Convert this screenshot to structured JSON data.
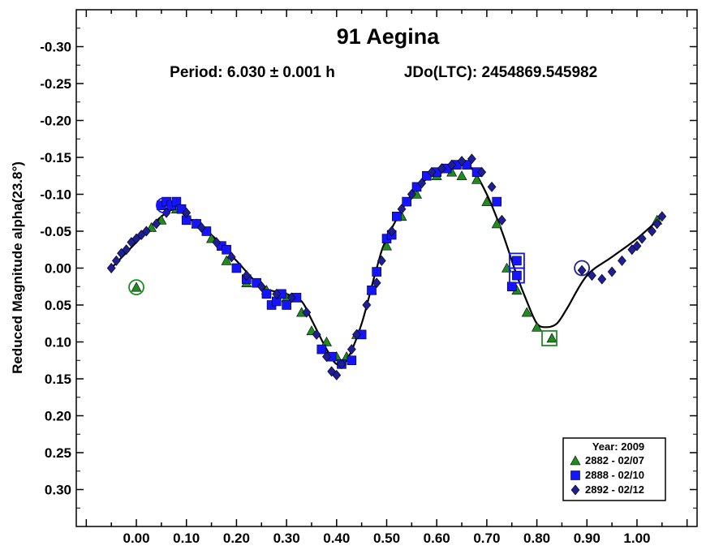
{
  "chart_data": {
    "type": "scatter",
    "title": "91 Aegina",
    "period_text": "Period: 6.030 ± 0.001 h",
    "epoch_text": "JDo(LTC): 2454869.545982",
    "xlabel": "",
    "ylabel": "Reduced Magnitude alpha(23.8°)",
    "xlim": [
      -0.12,
      1.12
    ],
    "ylim": [
      -0.35,
      0.35
    ],
    "y_inverted": true,
    "grid": false,
    "x_tick_values": [
      0.0,
      0.1,
      0.2,
      0.3,
      0.4,
      0.5,
      0.6,
      0.7,
      0.8,
      0.9,
      1.0
    ],
    "x_tick_labels": [
      "0.00",
      "0.10",
      "0.20",
      "0.30",
      "0.40",
      "0.50",
      "0.60",
      "0.70",
      "0.80",
      "0.90",
      "1.00"
    ],
    "y_tick_values": [
      -0.3,
      -0.25,
      -0.2,
      -0.15,
      -0.1,
      -0.05,
      0.0,
      0.05,
      0.1,
      0.15,
      0.2,
      0.25,
      0.3
    ],
    "y_tick_labels": [
      "-0.30",
      "-0.25",
      "-0.20",
      "-0.15",
      "-0.10",
      "-0.05",
      "0.00",
      "0.05",
      "0.10",
      "0.15",
      "0.20",
      "0.25",
      "0.30"
    ],
    "legend": {
      "position": "bottom-right",
      "title": "Year: 2009",
      "entries": [
        {
          "label": "2882 - 02/07",
          "marker": "triangle",
          "color": "#1e8c1e"
        },
        {
          "label": "2888 - 02/10",
          "marker": "square",
          "color": "#1414ff"
        },
        {
          "label": "2892 - 02/12",
          "marker": "diamond",
          "color": "#1e1e96"
        }
      ]
    },
    "fit_curve": {
      "color": "#000000",
      "x": [
        -0.05,
        0.0,
        0.05,
        0.08,
        0.1,
        0.15,
        0.2,
        0.25,
        0.3,
        0.33,
        0.35,
        0.38,
        0.4,
        0.42,
        0.45,
        0.48,
        0.5,
        0.55,
        0.6,
        0.65,
        0.67,
        0.7,
        0.73,
        0.76,
        0.78,
        0.8,
        0.82,
        0.84,
        0.86,
        0.9,
        0.95,
        1.0,
        1.05
      ],
      "y": [
        0.0,
        -0.035,
        -0.07,
        -0.08,
        -0.07,
        -0.045,
        -0.01,
        0.025,
        0.035,
        0.045,
        0.07,
        0.11,
        0.13,
        0.125,
        0.075,
        0.0,
        -0.04,
        -0.1,
        -0.13,
        -0.14,
        -0.135,
        -0.1,
        -0.05,
        0.01,
        0.045,
        0.075,
        0.08,
        0.075,
        0.055,
        0.01,
        -0.015,
        -0.04,
        -0.07
      ]
    },
    "series": [
      {
        "name": "2882 - 02/07",
        "marker": "triangle",
        "color": "#1e8c1e",
        "x": [
          0.0,
          0.03,
          0.05,
          0.08,
          0.12,
          0.15,
          0.18,
          0.22,
          0.26,
          0.3,
          0.33,
          0.35,
          0.38,
          0.4,
          0.42,
          0.44,
          0.47,
          0.5,
          0.53,
          0.56,
          0.6,
          0.63,
          0.65,
          0.68,
          0.7,
          0.72,
          0.74,
          0.76,
          0.78,
          0.8,
          0.83,
          1.04
        ],
        "y": [
          0.026,
          -0.055,
          -0.065,
          -0.08,
          -0.06,
          -0.04,
          -0.01,
          0.02,
          0.03,
          0.04,
          0.06,
          0.085,
          0.1,
          0.12,
          0.12,
          0.09,
          0.03,
          -0.03,
          -0.07,
          -0.1,
          -0.125,
          -0.13,
          -0.125,
          -0.12,
          -0.09,
          -0.06,
          0.0,
          0.03,
          0.06,
          0.08,
          0.095,
          -0.065
        ]
      },
      {
        "name": "2888 - 02/10",
        "marker": "square",
        "color": "#1414ff",
        "x": [
          0.05,
          0.06,
          0.07,
          0.08,
          0.09,
          0.1,
          0.12,
          0.14,
          0.17,
          0.18,
          0.2,
          0.22,
          0.24,
          0.26,
          0.27,
          0.28,
          0.29,
          0.3,
          0.32,
          0.37,
          0.39,
          0.41,
          0.43,
          0.45,
          0.47,
          0.48,
          0.5,
          0.51,
          0.52,
          0.54,
          0.56,
          0.58,
          0.6,
          0.62,
          0.64,
          0.66,
          0.68,
          0.72,
          0.75,
          0.76,
          0.76
        ],
        "y": [
          -0.085,
          -0.09,
          -0.085,
          -0.09,
          -0.08,
          -0.065,
          -0.06,
          -0.05,
          -0.03,
          -0.025,
          0.0,
          0.015,
          0.02,
          0.035,
          0.05,
          0.045,
          0.035,
          0.05,
          0.04,
          0.11,
          0.12,
          0.13,
          0.125,
          0.09,
          0.03,
          0.005,
          -0.04,
          -0.045,
          -0.07,
          -0.09,
          -0.11,
          -0.125,
          -0.13,
          -0.135,
          -0.14,
          -0.14,
          -0.13,
          -0.09,
          0.025,
          0.01,
          -0.01
        ]
      },
      {
        "name": "2892 - 02/12",
        "marker": "diamond",
        "color": "#1e1e96",
        "x": [
          -0.05,
          -0.04,
          -0.03,
          -0.02,
          -0.01,
          0.0,
          0.01,
          0.02,
          0.04,
          0.06,
          0.1,
          0.13,
          0.16,
          0.19,
          0.22,
          0.25,
          0.28,
          0.31,
          0.34,
          0.36,
          0.38,
          0.39,
          0.4,
          0.41,
          0.43,
          0.44,
          0.46,
          0.48,
          0.49,
          0.51,
          0.53,
          0.55,
          0.57,
          0.59,
          0.61,
          0.63,
          0.65,
          0.67,
          0.69,
          0.71,
          0.73,
          0.89,
          0.91,
          0.93,
          0.95,
          0.97,
          0.99,
          1.0,
          1.01,
          1.03,
          1.04,
          1.05
        ],
        "y": [
          0.0,
          -0.01,
          -0.02,
          -0.025,
          -0.035,
          -0.04,
          -0.045,
          -0.05,
          -0.06,
          -0.075,
          -0.075,
          -0.055,
          -0.035,
          -0.015,
          0.01,
          0.025,
          0.035,
          0.04,
          0.06,
          0.09,
          0.12,
          0.14,
          0.145,
          0.13,
          0.11,
          0.09,
          0.05,
          0.02,
          -0.01,
          -0.05,
          -0.08,
          -0.1,
          -0.115,
          -0.13,
          -0.135,
          -0.14,
          -0.145,
          -0.148,
          -0.13,
          -0.11,
          -0.065,
          0.003,
          0.01,
          0.015,
          0.005,
          -0.01,
          -0.025,
          -0.03,
          -0.04,
          -0.05,
          -0.06,
          -0.07
        ]
      }
    ],
    "highlighted": [
      {
        "x": 0.0,
        "y": 0.026,
        "shape": "circle",
        "color": "#1e8c1e"
      },
      {
        "x": 0.055,
        "y": -0.085,
        "shape": "circle",
        "color": "#1414ff"
      },
      {
        "x": 0.89,
        "y": 0.0,
        "shape": "circle",
        "color": "#1e1e96"
      },
      {
        "x": 0.76,
        "y": 0.01,
        "shape": "square",
        "color": "#1414ff"
      },
      {
        "x": 0.76,
        "y": -0.01,
        "shape": "square",
        "color": "#1414ff"
      },
      {
        "x": 0.825,
        "y": 0.095,
        "shape": "square",
        "color": "#1e8c1e"
      }
    ]
  }
}
